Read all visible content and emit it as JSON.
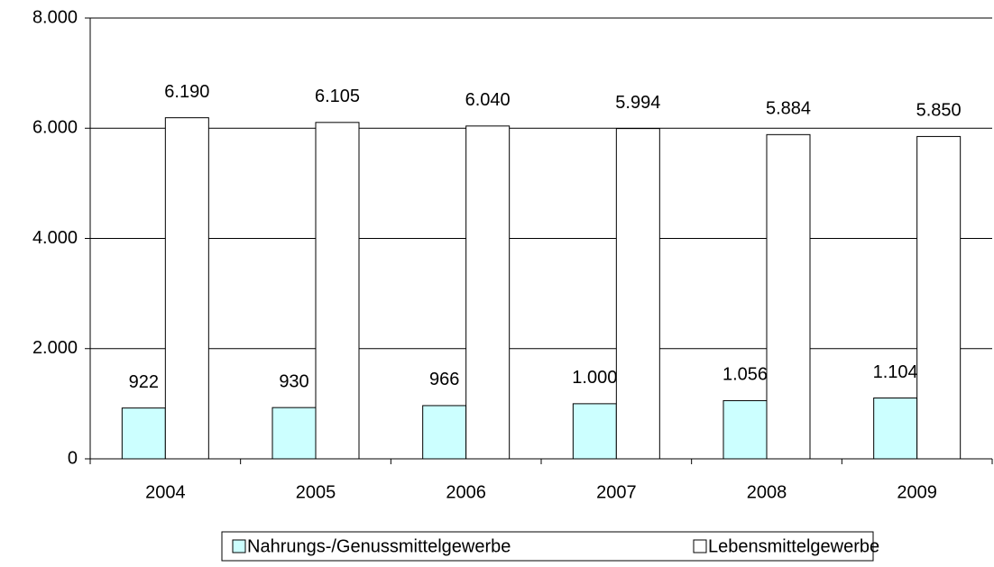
{
  "chart_data": {
    "type": "bar",
    "categories": [
      "2004",
      "2005",
      "2006",
      "2007",
      "2008",
      "2009"
    ],
    "series": [
      {
        "name": "Nahrungs-/Genussmittelgewerbe",
        "color": "#ccffff",
        "values": [
          922,
          930,
          966,
          1000,
          1056,
          1104
        ],
        "value_labels": [
          "922",
          "930",
          "966",
          "1.000",
          "1.056",
          "1.104"
        ]
      },
      {
        "name": "Lebensmittelgewerbe",
        "color": "#ffffff",
        "values": [
          6190,
          6105,
          6040,
          5994,
          5884,
          5850
        ],
        "value_labels": [
          "6.190",
          "6.105",
          "6.040",
          "5.994",
          "5.884",
          "5.850"
        ]
      }
    ],
    "ylim": [
      0,
      8000
    ],
    "yticks": [
      0,
      {
        "value": 2000,
        "label": "2.000"
      },
      {
        "value": 4000,
        "label": "4.000"
      },
      {
        "value": 6000,
        "label": "6.000"
      },
      {
        "value": 8000,
        "label": "8.000"
      }
    ],
    "grid": true,
    "legend": "bottom"
  }
}
